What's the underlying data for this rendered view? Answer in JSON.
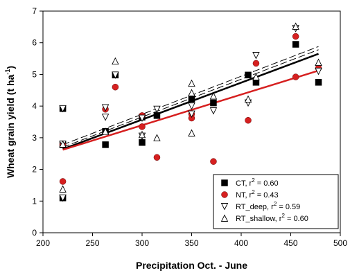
{
  "chart_data": {
    "type": "scatter",
    "title": "",
    "xlabel": "Precipitation Oct. - June",
    "ylabel_main": "Wheat grain yield (t ha",
    "ylabel_sup": "-1",
    "ylabel_tail": ")",
    "xlim": [
      200,
      500
    ],
    "ylim": [
      0,
      7
    ],
    "xticks": [
      "200",
      "250",
      "300",
      "350",
      "400",
      "450",
      "500"
    ],
    "yticks": [
      "0",
      "1",
      "2",
      "3",
      "4",
      "5",
      "6",
      "7"
    ],
    "legend_position": "bottom-right",
    "series": [
      {
        "name": "CT, r",
        "r2": "0.60",
        "marker": "square",
        "color": "#000000",
        "points": [
          [
            220,
            3.92
          ],
          [
            220,
            1.1
          ],
          [
            220,
            2.78
          ],
          [
            263,
            3.2
          ],
          [
            263,
            2.78
          ],
          [
            273,
            4.98
          ],
          [
            300,
            2.85
          ],
          [
            300,
            3.65
          ],
          [
            315,
            3.7
          ],
          [
            350,
            4.22
          ],
          [
            372,
            4.1
          ],
          [
            407,
            4.98
          ],
          [
            415,
            4.75
          ],
          [
            455,
            5.95
          ],
          [
            478,
            4.75
          ]
        ],
        "fit": {
          "x": [
            220,
            478
          ],
          "y": [
            2.64,
            5.65
          ],
          "style": "solid",
          "width": 2.5
        }
      },
      {
        "name": "NT, r",
        "r2": "0.43",
        "marker": "circle",
        "color": "#d62020",
        "points": [
          [
            220,
            2.78
          ],
          [
            220,
            1.62
          ],
          [
            263,
            3.9
          ],
          [
            273,
            4.6
          ],
          [
            300,
            3.35
          ],
          [
            300,
            3.7
          ],
          [
            315,
            2.38
          ],
          [
            350,
            3.75
          ],
          [
            350,
            3.62
          ],
          [
            372,
            2.25
          ],
          [
            407,
            3.55
          ],
          [
            415,
            5.35
          ],
          [
            455,
            4.92
          ],
          [
            455,
            6.2
          ],
          [
            478,
            5.2
          ]
        ],
        "fit": {
          "x": [
            220,
            478
          ],
          "y": [
            2.62,
            5.12
          ],
          "style": "solid",
          "width": 2.5
        }
      },
      {
        "name": "RT_deep, r",
        "r2": "0.59",
        "marker": "triangle-down",
        "color": "#000000",
        "points": [
          [
            220,
            3.92
          ],
          [
            220,
            1.1
          ],
          [
            220,
            2.8
          ],
          [
            263,
            3.65
          ],
          [
            263,
            3.95
          ],
          [
            273,
            4.98
          ],
          [
            300,
            3.05
          ],
          [
            300,
            3.62
          ],
          [
            315,
            3.9
          ],
          [
            350,
            4.0
          ],
          [
            350,
            3.75
          ],
          [
            372,
            3.85
          ],
          [
            407,
            4.1
          ],
          [
            415,
            5.6
          ],
          [
            455,
            6.45
          ],
          [
            478,
            5.1
          ]
        ],
        "fit": {
          "x": [
            220,
            478
          ],
          "y": [
            2.7,
            5.78
          ],
          "style": "dashed",
          "width": 1
        }
      },
      {
        "name": "RT_shallow, r",
        "r2": "0.60",
        "marker": "triangle-up",
        "color": "#000000",
        "points": [
          [
            220,
            1.38
          ],
          [
            220,
            2.8
          ],
          [
            263,
            3.2
          ],
          [
            273,
            5.42
          ],
          [
            300,
            3.1
          ],
          [
            315,
            3.0
          ],
          [
            350,
            4.72
          ],
          [
            350,
            4.42
          ],
          [
            350,
            3.15
          ],
          [
            372,
            4.32
          ],
          [
            407,
            4.22
          ],
          [
            415,
            4.92
          ],
          [
            455,
            6.52
          ],
          [
            478,
            5.38
          ]
        ],
        "fit": {
          "x": [
            220,
            478
          ],
          "y": [
            2.78,
            5.88
          ],
          "style": "dashed",
          "width": 1
        }
      }
    ]
  }
}
